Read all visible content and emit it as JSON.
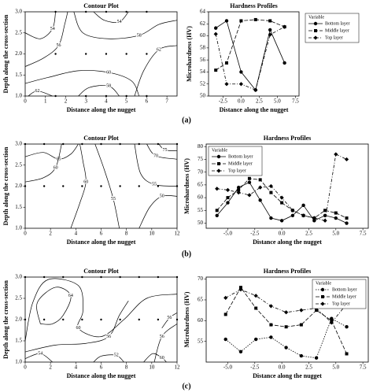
{
  "panels": [
    "(a)",
    "(b)",
    "(c)"
  ],
  "chart_data": [
    {
      "type": "contour",
      "title": "Contour Plot",
      "xlabel": "Distance along the nugget",
      "ylabel": "Depth along the cross-section",
      "xlim": [
        0,
        7.5
      ],
      "xticks": [
        0,
        1,
        2,
        3,
        4,
        5,
        6,
        7
      ],
      "ylim": [
        1,
        3
      ],
      "yticks": [
        {
          "value": 1,
          "label": "1.0"
        },
        {
          "value": 1.5,
          "label": "1.5"
        },
        {
          "value": 2,
          "label": "2.0"
        },
        {
          "value": 2.5,
          "label": "2.5"
        },
        {
          "value": 3,
          "label": "3.0"
        }
      ],
      "points": {
        "x": [
          1.5,
          3,
          4,
          5,
          6,
          1.5,
          3,
          4,
          5,
          6,
          1.5,
          3,
          4,
          5,
          6
        ],
        "y": [
          1,
          1,
          1,
          1,
          1,
          2,
          2,
          2,
          2,
          2,
          3,
          3,
          3,
          3,
          3
        ]
      },
      "levels": [
        54,
        58,
        62,
        54,
        56,
        60,
        58,
        62
      ],
      "color": "#000000"
    },
    {
      "type": "line",
      "title": "Hardness Profiles",
      "xlabel": "Distance along the nugget",
      "ylabel": "Microhardness (HV)",
      "xlim": [
        -4.5,
        8
      ],
      "xticks": [
        {
          "value": -2.5,
          "label": "-2.5"
        },
        {
          "value": 0,
          "label": "0.0"
        },
        {
          "value": 2.5,
          "label": "2.5"
        },
        {
          "value": 5,
          "label": "5.0"
        },
        {
          "value": 7.5,
          "label": "7.5"
        }
      ],
      "ylim": [
        50,
        64
      ],
      "yticks": [
        50,
        52,
        54,
        56,
        58,
        60,
        62,
        64
      ],
      "legend_title": "Variable",
      "legend": "outside right",
      "x": [
        -3.5,
        -2,
        0,
        2,
        4,
        6
      ],
      "series": [
        {
          "name": "Bottom layer",
          "color": "#000000",
          "dash": "solid",
          "marker": "circle",
          "values": [
            61.3,
            62.5,
            54,
            51,
            61,
            55.5
          ]
        },
        {
          "name": "Middle layer",
          "color": "#000000",
          "dash": "dashed",
          "marker": "square",
          "values": [
            54.3,
            55.5,
            62.5,
            62.7,
            62.5,
            61.5
          ]
        },
        {
          "name": "Top layer",
          "color": "#000000",
          "dash": "dashdot",
          "marker": "diamond",
          "values": [
            60.3,
            52,
            52,
            51,
            60.2,
            61.5
          ]
        }
      ]
    },
    {
      "type": "contour",
      "title": "Contour Plot",
      "xlabel": "Distance along the nugget",
      "ylabel": "Depth along the cross-section",
      "xlim": [
        0,
        12
      ],
      "xticks": [
        0,
        2,
        4,
        6,
        8,
        10,
        12
      ],
      "ylim": [
        1,
        3
      ],
      "yticks": [
        {
          "value": 1,
          "label": "1.0"
        },
        {
          "value": 1.5,
          "label": "1.5"
        },
        {
          "value": 2,
          "label": "2.0"
        },
        {
          "value": 2.5,
          "label": "2.5"
        },
        {
          "value": 3,
          "label": "3.0"
        }
      ],
      "points": {
        "x": [
          0,
          1.5,
          3,
          4.5,
          6,
          7.5,
          9,
          10.5,
          12,
          0,
          1.5,
          3,
          4.5,
          6,
          7.5,
          9,
          10.5,
          12
        ],
        "y": [
          2,
          2,
          2,
          2,
          2,
          2,
          2,
          2,
          2,
          3,
          3,
          3,
          3,
          3,
          3,
          3,
          3,
          3
        ]
      },
      "levels": [
        65,
        60,
        55,
        75,
        70,
        55,
        50,
        60
      ],
      "color": "#000000"
    },
    {
      "type": "line",
      "title": "Hardness Profiles",
      "xlabel": "Distance along the nugget",
      "ylabel": "Microhardness (HV)",
      "xlim": [
        -7,
        8
      ],
      "xticks": [
        {
          "value": -5,
          "label": "-5.0"
        },
        {
          "value": -2.5,
          "label": "-2.5"
        },
        {
          "value": 0,
          "label": "0.0"
        },
        {
          "value": 2.5,
          "label": "2.5"
        },
        {
          "value": 5,
          "label": "5.0"
        },
        {
          "value": 7.5,
          "label": "7.5"
        }
      ],
      "ylim": [
        48,
        81
      ],
      "yticks": [
        50,
        55,
        60,
        65,
        70,
        75,
        80
      ],
      "legend_title": "Variable",
      "legend": "upper left",
      "x": [
        -6,
        -5,
        -4,
        -3,
        -2,
        -1,
        0,
        1,
        2,
        3,
        4,
        5,
        6
      ],
      "series": [
        {
          "name": "Bottom layer",
          "color": "#000000",
          "dash": "solid",
          "marker": "circle",
          "values": [
            53,
            58,
            64,
            66,
            59,
            52,
            51,
            53,
            57,
            51,
            53,
            52,
            50
          ]
        },
        {
          "name": "Middle layer",
          "color": "#000000",
          "dash": "dashed",
          "marker": "square",
          "values": [
            55,
            60,
            63,
            67.5,
            67,
            62,
            58,
            55,
            53,
            52,
            55,
            54,
            52
          ]
        },
        {
          "name": "Top layer",
          "color": "#000000",
          "dash": "dashdot",
          "marker": "diamond",
          "values": [
            63.5,
            63,
            62,
            61,
            64,
            64.5,
            60,
            55,
            53,
            52,
            51,
            77,
            75
          ]
        }
      ]
    },
    {
      "type": "contour",
      "title": "Contour Plot",
      "xlabel": "Distance along the nugget",
      "ylabel": "Depth along the cross-section",
      "xlim": [
        0,
        12
      ],
      "xticks": [
        0,
        2,
        4,
        6,
        8,
        10,
        12
      ],
      "ylim": [
        1,
        3
      ],
      "yticks": [
        {
          "value": 1,
          "label": "1.0"
        },
        {
          "value": 1.5,
          "label": "1.5"
        },
        {
          "value": 2,
          "label": "2.0"
        },
        {
          "value": 2.5,
          "label": "2.5"
        },
        {
          "value": 3,
          "label": "3.0"
        }
      ],
      "points": {
        "x": [
          0,
          1.5,
          3,
          4.5,
          6,
          7.5,
          9,
          10.5,
          12,
          0,
          1.5,
          3,
          4.5,
          6,
          7.5,
          9,
          10.5,
          12
        ],
        "y": [
          2,
          2,
          2,
          2,
          2,
          2,
          2,
          2,
          2,
          3,
          3,
          3,
          3,
          3,
          3,
          3,
          3,
          3
        ]
      },
      "levels": [
        64,
        60,
        56,
        56,
        52,
        60,
        56,
        54
      ],
      "color": "#000000"
    },
    {
      "type": "line",
      "title": "Hardness Profiles",
      "xlabel": "Distance along the nugget",
      "ylabel": "Microhardness (HV)",
      "xlim": [
        -7,
        8
      ],
      "xticks": [
        {
          "value": -5,
          "label": "-5.0"
        },
        {
          "value": -2.5,
          "label": "-2.5"
        },
        {
          "value": 0,
          "label": "0.0"
        },
        {
          "value": 2.5,
          "label": "2.5"
        },
        {
          "value": 5,
          "label": "5.0"
        },
        {
          "value": 7.5,
          "label": "7.5"
        }
      ],
      "ylim": [
        50,
        70.5
      ],
      "yticks": [
        55,
        60,
        65,
        70
      ],
      "legend_title": "Variable",
      "legend": "upper right",
      "x": [
        -5.2,
        -3.8,
        -2.4,
        -1,
        0.4,
        1.8,
        3.2,
        4.6,
        6
      ],
      "series": [
        {
          "name": "Bottom layer",
          "color": "#000000",
          "dash": "dotted",
          "marker": "circle",
          "values": [
            55.5,
            52.5,
            55.5,
            56,
            53.5,
            51.5,
            51,
            60.5,
            58.5
          ]
        },
        {
          "name": "Middle layer",
          "color": "#000000",
          "dash": "dashed",
          "marker": "square",
          "values": [
            61.5,
            68,
            63,
            59,
            58.5,
            59,
            62.5,
            60,
            52
          ]
        },
        {
          "name": "Top layer",
          "color": "#000000",
          "dash": "dashdot",
          "marker": "diamond",
          "values": [
            65.5,
            67.5,
            66,
            63.5,
            62,
            62.5,
            63,
            59.5,
            64
          ]
        }
      ]
    }
  ]
}
